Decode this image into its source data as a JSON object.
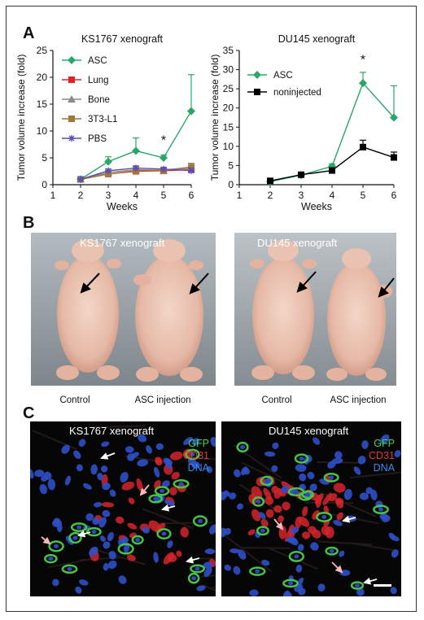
{
  "figure": {
    "panelA": "A",
    "panelB": "B",
    "panelC": "C"
  },
  "chart_data": [
    {
      "type": "line",
      "title": "KS1767 xenograft",
      "xlabel": "Weeks",
      "ylabel": "Tumor volume increase (fold)",
      "xlim": [
        1,
        6
      ],
      "ylim": [
        0,
        25
      ],
      "xticks": [
        1,
        2,
        3,
        4,
        5,
        6
      ],
      "yticks": [
        0,
        5,
        10,
        15,
        20,
        25
      ],
      "legend_position": "top-left",
      "annotations": [
        {
          "text": "*",
          "x": 5,
          "y": 7.5
        }
      ],
      "series": [
        {
          "name": "ASC",
          "color": "#2aa66a",
          "marker": "diamond",
          "x": [
            2,
            3,
            4,
            5,
            6
          ],
          "y": [
            1.0,
            4.3,
            6.3,
            5.0,
            13.7
          ],
          "err": [
            0.2,
            0.9,
            2.4,
            0.5,
            6.8
          ]
        },
        {
          "name": "Lung",
          "color": "#d9262e",
          "marker": "square",
          "x": [
            2,
            3,
            4,
            5,
            6
          ],
          "y": [
            1.0,
            2.0,
            2.5,
            2.6,
            2.8
          ],
          "err": [
            0.2,
            0.3,
            0.4,
            0.3,
            0.6
          ]
        },
        {
          "name": "Bone",
          "color": "#8a8a8a",
          "marker": "triangle",
          "x": [
            2,
            3,
            4,
            5,
            6
          ],
          "y": [
            1.0,
            2.3,
            2.8,
            2.7,
            3.3
          ],
          "err": [
            0.2,
            0.3,
            0.5,
            0.4,
            0.7
          ]
        },
        {
          "name": "3T3-L1",
          "color": "#a07838",
          "marker": "square",
          "x": [
            2,
            3,
            4,
            5,
            6
          ],
          "y": [
            1.0,
            2.0,
            2.6,
            2.7,
            3.1
          ],
          "err": [
            0.2,
            0.3,
            0.4,
            0.3,
            0.7
          ]
        },
        {
          "name": "PBS",
          "color": "#5a4fb5",
          "marker": "star",
          "x": [
            2,
            3,
            4,
            5,
            6
          ],
          "y": [
            1.0,
            2.6,
            3.1,
            2.9,
            2.6
          ],
          "err": [
            0.2,
            0.3,
            0.4,
            0.3,
            0.5
          ]
        }
      ]
    },
    {
      "type": "line",
      "title": "DU145 xenograft",
      "xlabel": "Weeks",
      "ylabel": "Tumor volume increase (fold)",
      "xlim": [
        1,
        6
      ],
      "ylim": [
        0,
        35
      ],
      "xticks": [
        1,
        2,
        3,
        4,
        5,
        6
      ],
      "yticks": [
        0,
        5,
        10,
        15,
        20,
        25,
        30,
        35
      ],
      "legend_position": "top-left",
      "annotations": [
        {
          "text": "*",
          "x": 5,
          "y": 31.5
        }
      ],
      "series": [
        {
          "name": "ASC",
          "color": "#2aa66a",
          "marker": "diamond",
          "x": [
            2,
            3,
            4,
            5,
            6
          ],
          "y": [
            0.8,
            2.5,
            4.8,
            26.5,
            17.5
          ],
          "err": [
            0.3,
            0.6,
            0.6,
            2.8,
            8.3
          ]
        },
        {
          "name": "noninjected",
          "color": "#000000",
          "marker": "square",
          "x": [
            2,
            3,
            4,
            5,
            6
          ],
          "y": [
            1.0,
            2.6,
            3.7,
            9.8,
            7.1
          ],
          "err": [
            0.3,
            0.5,
            0.4,
            1.8,
            1.4
          ]
        }
      ]
    }
  ],
  "panelB": {
    "left_label": "KS1767 xenograft",
    "right_label": "DU145 xenograft",
    "captions": [
      "Control",
      "ASC injection",
      "Control",
      "ASC injection"
    ]
  },
  "panelC": {
    "left_label": "KS1767 xenograft",
    "right_label": "DU145 xenograft",
    "stains": [
      {
        "label": "GFP",
        "color": "#4cd04c"
      },
      {
        "label": "CD31",
        "color": "#e23a3a"
      },
      {
        "label": "DNA",
        "color": "#3a8cf0"
      }
    ]
  }
}
